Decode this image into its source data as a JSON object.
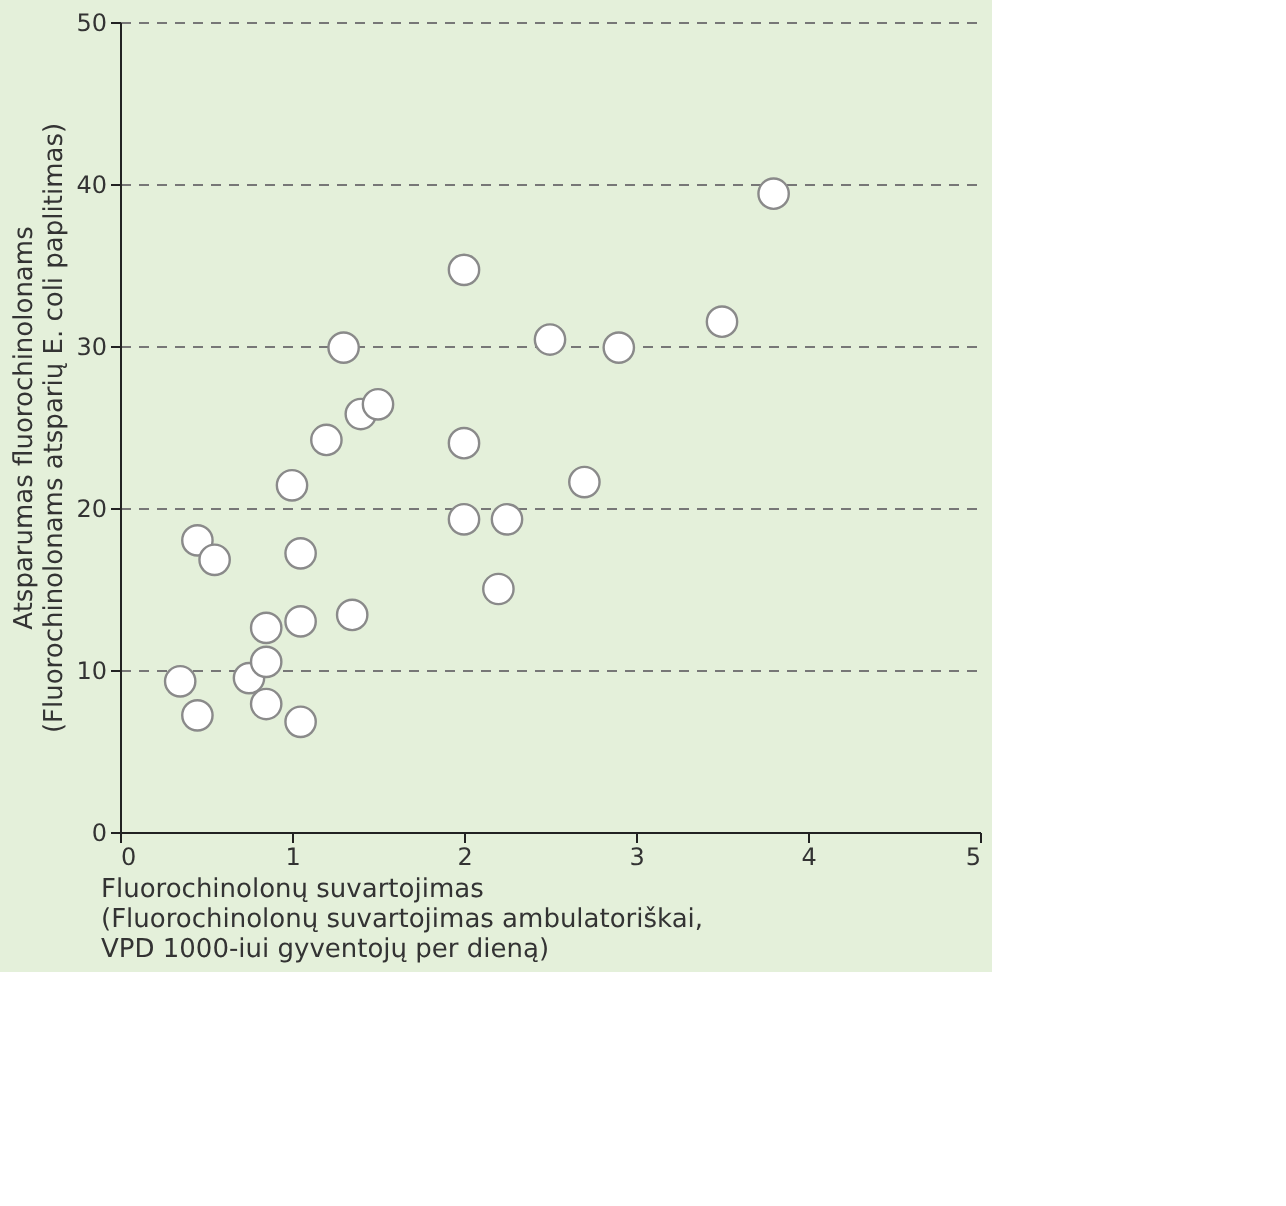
{
  "chart_data": {
    "type": "scatter",
    "xlabel": "Fluorochinolonų suvartojimas\n(Fluorochinolonų suvartojimas ambulatoriškai,\nVPD 1000-iui gyventojų per dieną)",
    "ylabel": "Atsparumas fluorochinolonams\n(Fluorochinolonams atsparių E. coli paplitimas)",
    "series": [
      {
        "color": "#ffffff",
        "x": [
          0.35,
          0.45,
          0.45,
          0.55,
          0.75,
          0.85,
          0.85,
          0.85,
          1.0,
          1.05,
          1.05,
          1.05,
          1.2,
          1.3,
          1.4,
          1.5,
          1.35,
          2.0,
          2.0,
          2.0,
          2.2,
          2.25,
          2.5,
          2.7,
          2.9,
          3.5,
          3.8
        ],
        "values": [
          9.3,
          7.2,
          18,
          16.8,
          9.5,
          12.6,
          10.5,
          7.9,
          21.4,
          17.2,
          13,
          6.8,
          24.2,
          29.9,
          25.8,
          26.4,
          13.4,
          34.7,
          24,
          19.3,
          15,
          19.3,
          30.4,
          21.6,
          29.9,
          31.5,
          39.4
        ]
      }
    ],
    "xlim": [
      0,
      5
    ],
    "ylim": [
      0,
      50
    ],
    "xticks": [
      0,
      1,
      2,
      3,
      4,
      5
    ],
    "yticks": [
      0,
      10,
      20,
      30,
      40,
      50
    ],
    "grid": "y",
    "marker": "circle",
    "legend": false
  }
}
